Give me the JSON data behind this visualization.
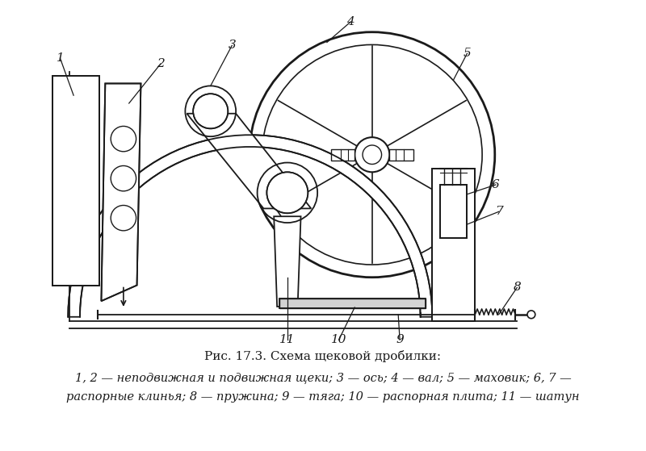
{
  "title": "Рис. 17.3. Схема щековой дробилки:",
  "caption_line1": "1, 2 — неподвижная и подвижная щеки; 3 — ось; 4 — вал; 5 — маховик; 6, 7 —",
  "caption_line2": "распорные клинья; 8 — пружина; 9 — тяга; 10 — распорная плита; 11 — шатун",
  "bg_color": "#ffffff",
  "line_color": "#1a1a1a"
}
